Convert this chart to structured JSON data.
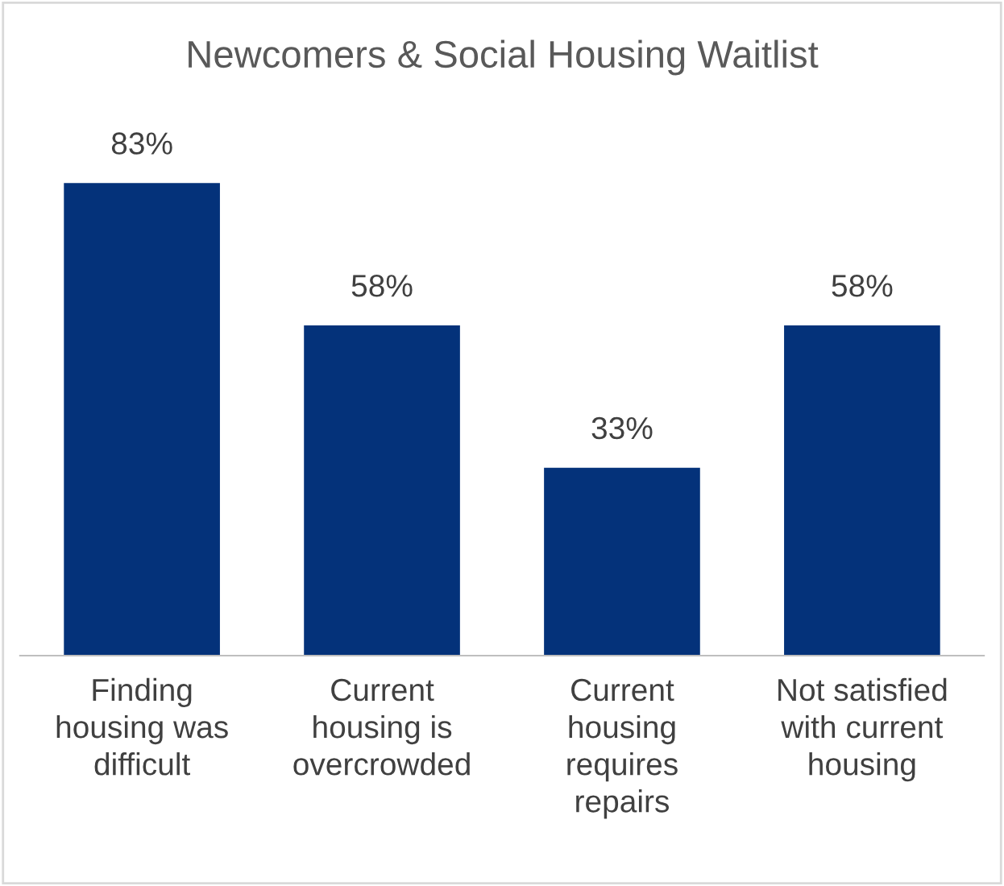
{
  "chart_data": {
    "type": "bar",
    "title": "Newcomers & Social Housing Waitlist",
    "categories": [
      "Finding\nhousing was\ndifficult",
      "Current\nhousing is\novercrowded",
      "Current\nhousing\nrequires\nrepairs",
      "Not satisfied\nwith current\nhousing"
    ],
    "values": [
      83,
      58,
      33,
      58
    ],
    "value_labels": [
      "83%",
      "58%",
      "33%",
      "58%"
    ],
    "color": "#04327a",
    "grid": false,
    "legend": false
  }
}
